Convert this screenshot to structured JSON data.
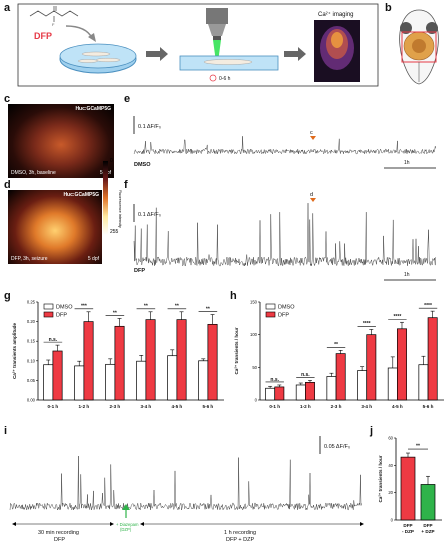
{
  "panels": {
    "a": {
      "letter": "a",
      "drug_label": "DFP",
      "time_label": "0-6 h",
      "imaging_label": "Ca²⁺ imaging"
    },
    "b": {
      "letter": "b"
    },
    "c": {
      "letter": "c",
      "line_label": "Huc:GCaMP5G",
      "condition": "DMSO, 3h, baseline",
      "age": "5 dpf",
      "colorbar_title": "Fluorescence intensity",
      "colorbar_min": "0",
      "colorbar_max": "255"
    },
    "d": {
      "letter": "d",
      "line_label": "Huc:GCaMP5G",
      "condition": "DFP, 3h, seizure",
      "age": "5 dpf"
    },
    "e": {
      "letter": "e",
      "scale_label": "0.1 ΔF/F₀",
      "trace_label": "DMSO",
      "marker": "c",
      "time_scale": "1h"
    },
    "f": {
      "letter": "f",
      "scale_label": "0.1 ΔF/F₀",
      "trace_label": "DFP",
      "marker": "d",
      "time_scale": "1h"
    },
    "g": {
      "letter": "g"
    },
    "h": {
      "letter": "h"
    },
    "i": {
      "letter": "i",
      "scale_label": "0.05 ΔF/F₀",
      "drug_note_line1": "+ Diazepam",
      "drug_note_line2": "(DZP)",
      "left_caption_line1": "30 min recording",
      "left_caption_line2": "DFP",
      "right_caption_line1": "1 h recording",
      "right_caption_line2": "DFP + DZP"
    },
    "j": {
      "letter": "j"
    }
  },
  "chart_data": [
    {
      "panel": "g",
      "type": "bar",
      "categories": [
        "0-1 h",
        "1-2 h",
        "2-3 h",
        "3-4 h",
        "4-5 h",
        "5-6 h"
      ],
      "series": [
        {
          "name": "DMSO",
          "values": [
            0.09,
            0.087,
            0.091,
            0.099,
            0.113,
            0.1
          ],
          "errors": [
            0.012,
            0.012,
            0.014,
            0.015,
            0.015,
            0.005
          ],
          "color": "#ffffff"
        },
        {
          "name": "DFP",
          "values": [
            0.125,
            0.2,
            0.188,
            0.205,
            0.205,
            0.193
          ],
          "errors": [
            0.015,
            0.025,
            0.02,
            0.02,
            0.02,
            0.025
          ],
          "color": "#ee3a43"
        }
      ],
      "significance": [
        "n.s.",
        "***",
        "**",
        "**",
        "**",
        "**"
      ],
      "ylabel": "Ca²⁺ transients amplitude",
      "ylim": [
        0,
        0.25
      ],
      "yticks": [
        "0.00",
        "0.05",
        "0.10",
        "0.15",
        "0.20",
        "0.25"
      ],
      "legend": "top-left"
    },
    {
      "panel": "h",
      "type": "bar",
      "categories": [
        "0-1 h",
        "1-2 h",
        "2-3 h",
        "3-4 h",
        "4-5 h",
        "5-6 h"
      ],
      "series": [
        {
          "name": "DMSO",
          "values": [
            18,
            23,
            36,
            45,
            49,
            54
          ],
          "errors": [
            3,
            3,
            5,
            6,
            17,
            13
          ],
          "color": "#ffffff"
        },
        {
          "name": "DFP",
          "values": [
            20,
            27,
            71,
            100,
            109,
            126
          ],
          "errors": [
            3,
            3,
            5,
            8,
            10,
            10
          ],
          "color": "#ee3a43"
        }
      ],
      "significance": [
        "n.s.",
        "n.s.",
        "**",
        "****",
        "****",
        "****"
      ],
      "ylabel": "Ca²⁺ transients / hour",
      "ylim": [
        0,
        150
      ],
      "yticks": [
        "0",
        "50",
        "100",
        "150"
      ],
      "legend": "top-left"
    },
    {
      "panel": "j",
      "type": "bar",
      "categories": [
        "DFP\n- DZP",
        "DFP\n+ DZP"
      ],
      "values": [
        46,
        26
      ],
      "errors": [
        3,
        6
      ],
      "colors": [
        "#ee3a43",
        "#2fb34a"
      ],
      "significance": "**",
      "ylabel": "Ca²⁺ transients / hour",
      "ylim": [
        0,
        60
      ],
      "yticks": [
        "0",
        "20",
        "40",
        "60"
      ]
    }
  ]
}
